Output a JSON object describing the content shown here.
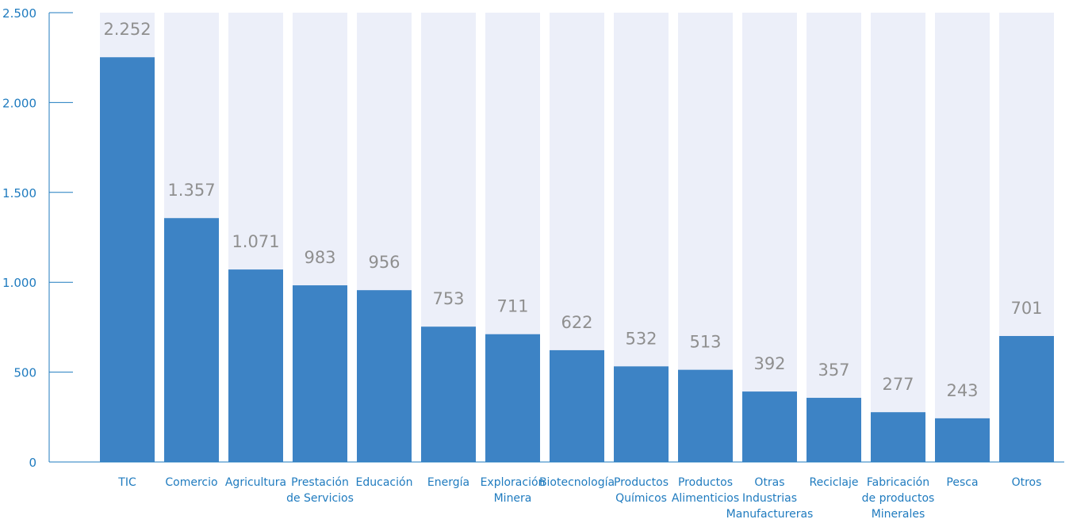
{
  "colors": {
    "bar": "#3d83c5",
    "track": "#eceff9",
    "axis": "#1f7bbf",
    "tick_text": "#1f7bbf",
    "cat_text": "#1f7bbf",
    "value_text": "#8f8f8f"
  },
  "chart_data": {
    "type": "bar",
    "title": "",
    "xlabel": "",
    "ylabel": "",
    "ylim": [
      0,
      2500
    ],
    "yticks": [
      0,
      500,
      1000,
      1500,
      2000,
      2500
    ],
    "ytick_labels": [
      "0",
      "500",
      "1.000",
      "1.500",
      "2.000",
      "2.500"
    ],
    "grid": false,
    "legend": "none",
    "categories": [
      [
        "TIC"
      ],
      [
        "Comercio"
      ],
      [
        "Agricultura"
      ],
      [
        "Prestación",
        "de Servicios"
      ],
      [
        "Educación"
      ],
      [
        "Energía"
      ],
      [
        "Exploración",
        "Minera"
      ],
      [
        "Biotecnología"
      ],
      [
        "Productos",
        "Químicos"
      ],
      [
        "Productos",
        "Alimenticios"
      ],
      [
        "Otras",
        "Industrias",
        "Manufactureras"
      ],
      [
        "Reciclaje"
      ],
      [
        "Fabricación",
        "de productos",
        "Minerales"
      ],
      [
        "Pesca"
      ],
      [
        "Otros"
      ]
    ],
    "values": [
      2252,
      1357,
      1071,
      983,
      956,
      753,
      711,
      622,
      532,
      513,
      392,
      357,
      277,
      243,
      701
    ],
    "value_labels": [
      "2.252",
      "1.357",
      "1.071",
      "983",
      "956",
      "753",
      "711",
      "622",
      "532",
      "513",
      "392",
      "357",
      "277",
      "243",
      "701"
    ]
  }
}
